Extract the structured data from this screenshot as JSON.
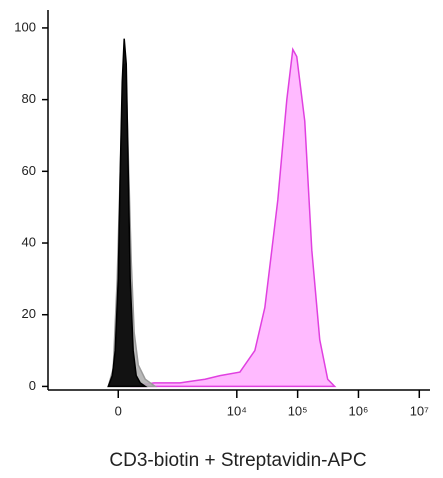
{
  "chart_data": {
    "type": "area",
    "xlabel": "CD3-biotin + Streptavidin-APC",
    "xscale": "biexponential",
    "xlim": [
      -1600,
      15000000
    ],
    "xticks": [
      0,
      {
        "value": 10000,
        "label": "10⁴"
      },
      {
        "value": 100000,
        "label": "10⁵"
      },
      {
        "value": 1000000,
        "label": "10⁶"
      },
      {
        "value": 10000000,
        "label": "10⁷"
      }
    ],
    "ylim": [
      -1,
      105
    ],
    "yticks": [
      0,
      20,
      40,
      60,
      80,
      100
    ],
    "series": [
      {
        "color": "#e040e0",
        "fill": "#ffb3ff",
        "x": [
          105,
          409,
          1157,
          3000,
          5290,
          11250,
          19800,
          28900,
          37600,
          47200,
          66400,
          83300,
          96800,
          131000,
          171000,
          231000,
          312000,
          406000
        ],
        "values": [
          0,
          1,
          1,
          2,
          3,
          4,
          10,
          22,
          38,
          52,
          80,
          94,
          92,
          74,
          38,
          13,
          2,
          0
        ]
      },
      {
        "color": "#9a9a9a",
        "fill": "#b0b0b0",
        "x": [
          -87,
          -43,
          -9,
          17,
          34,
          51,
          69,
          87,
          115,
          144,
          187,
          272,
          426
        ],
        "values": [
          0,
          5,
          30,
          60,
          80,
          90,
          85,
          65,
          35,
          15,
          6,
          2,
          0
        ]
      },
      {
        "color": "#000000",
        "fill": "#000000",
        "x": [
          -87,
          -51,
          -26,
          0,
          17,
          34,
          51,
          69,
          87,
          105,
          134,
          165,
          209,
          272
        ],
        "values": [
          0,
          3,
          10,
          30,
          60,
          85,
          97,
          90,
          60,
          30,
          10,
          3,
          1,
          0
        ]
      }
    ]
  }
}
